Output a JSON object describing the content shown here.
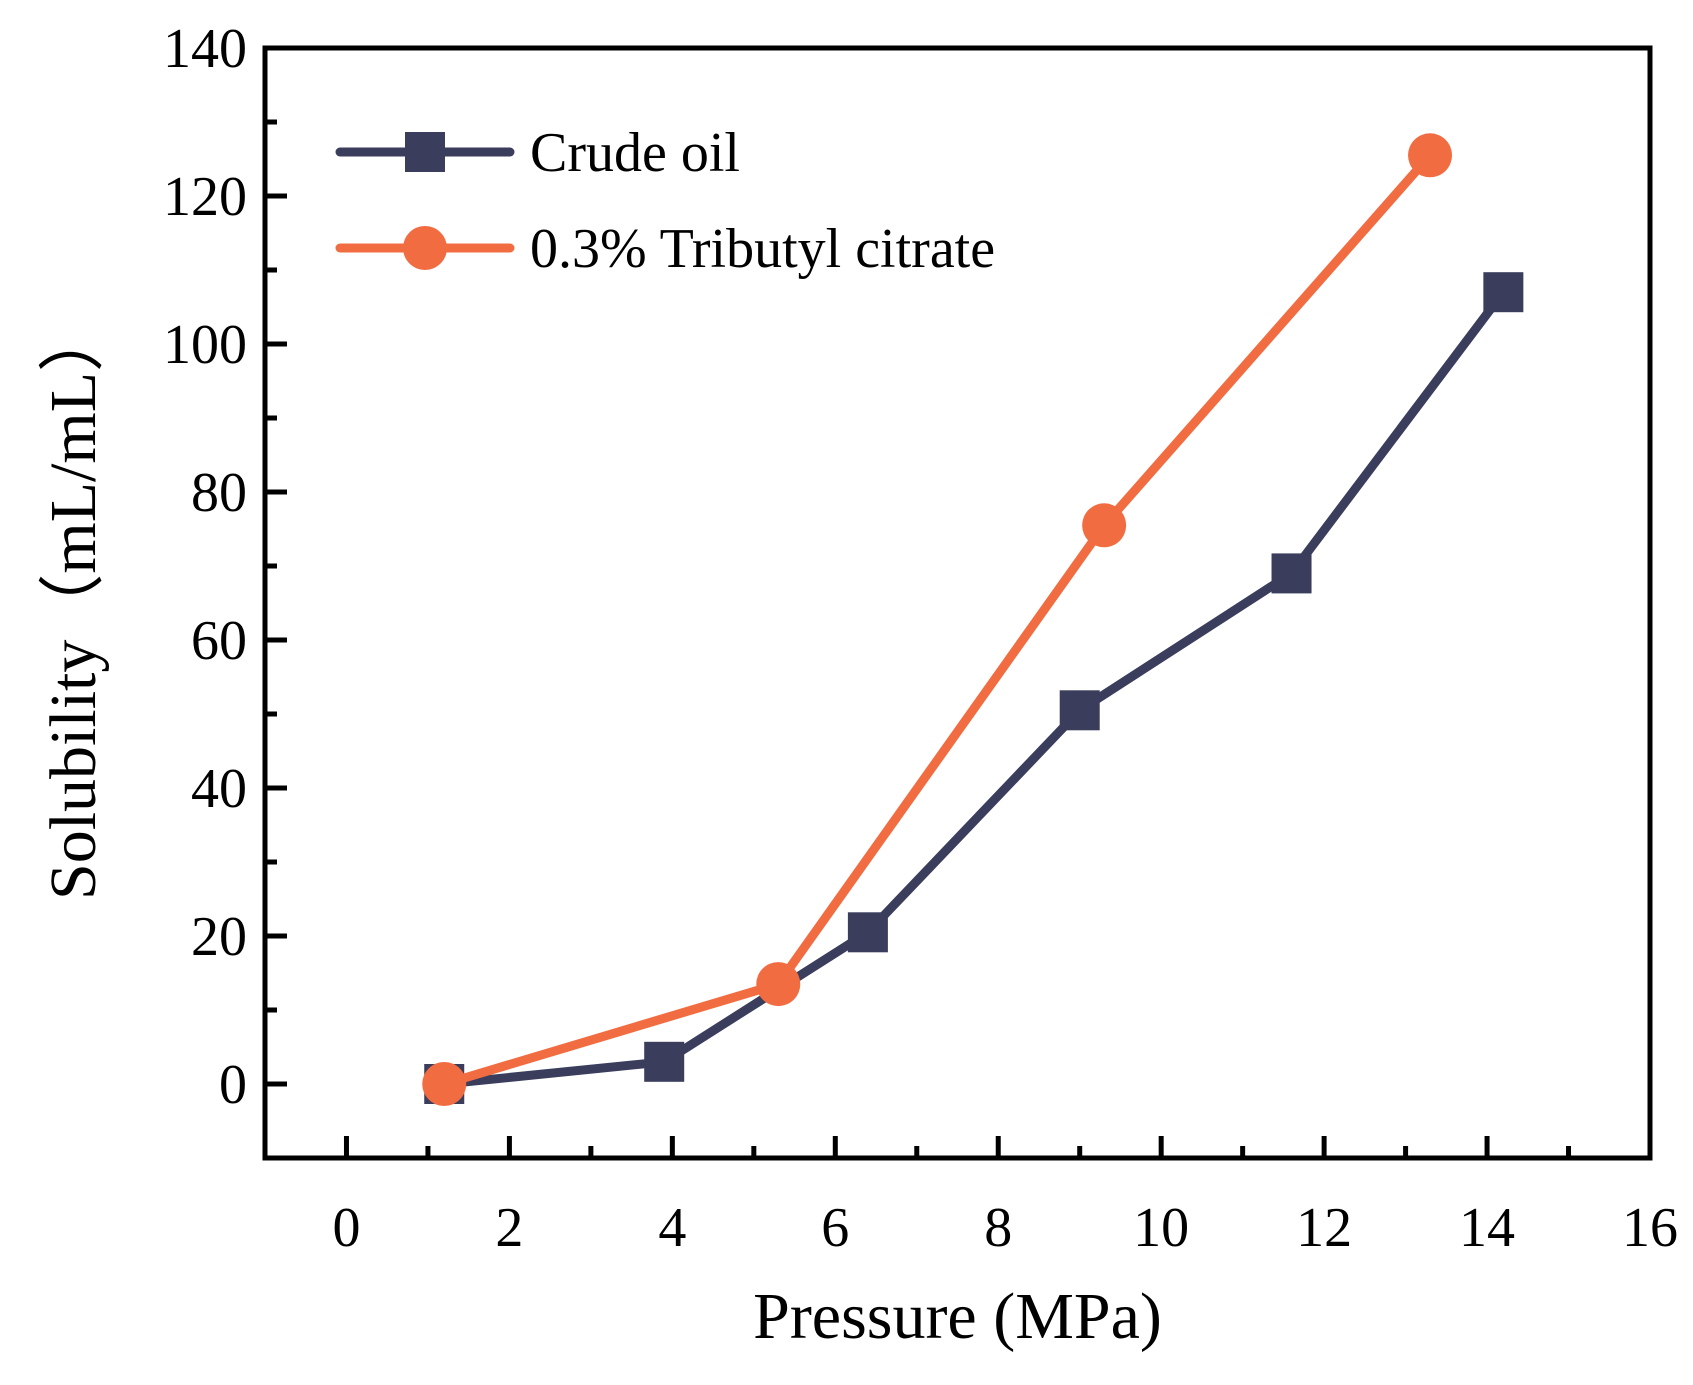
{
  "chart_data": {
    "type": "line",
    "title": "",
    "xlabel": "Pressure (MPa)",
    "ylabel": "Solubility（mL/mL）",
    "xlim": [
      -1,
      16
    ],
    "ylim": [
      -10,
      140
    ],
    "xticks": [
      "0",
      "2",
      "4",
      "6",
      "8",
      "10",
      "12",
      "14",
      "16"
    ],
    "xtick_values": [
      0,
      2,
      4,
      6,
      8,
      10,
      12,
      14,
      16
    ],
    "yticks": [
      "0",
      "20",
      "40",
      "60",
      "80",
      "100",
      "120",
      "140"
    ],
    "ytick_values": [
      0,
      20,
      40,
      60,
      80,
      100,
      120,
      140
    ],
    "grid": false,
    "legend_position": "top-left",
    "series": [
      {
        "name": "Crude oil",
        "color": "#3a3d5c",
        "marker": "square",
        "x": [
          1.2,
          3.9,
          6.4,
          9.0,
          11.6,
          14.2
        ],
        "y": [
          0,
          3,
          20.5,
          50.5,
          69,
          107
        ]
      },
      {
        "name": "0.3% Tributyl citrate",
        "color": "#f26c41",
        "marker": "circle",
        "x": [
          1.2,
          5.3,
          9.3,
          13.3
        ],
        "y": [
          0,
          13.5,
          75.5,
          125.5
        ]
      }
    ]
  }
}
